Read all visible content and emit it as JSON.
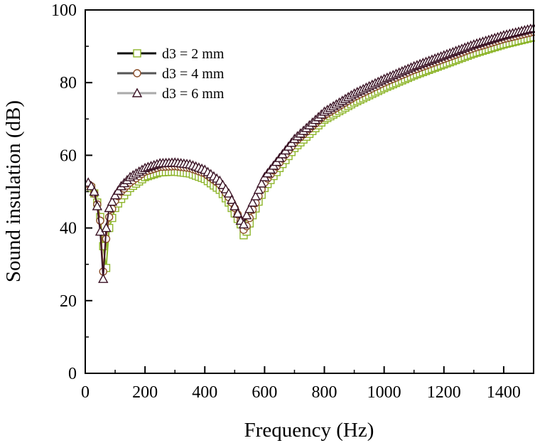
{
  "chart_data": {
    "type": "line",
    "title": "",
    "xlabel": "Frequency (Hz)",
    "ylabel": "Sound insulation (dB)",
    "xlim": [
      0,
      1500
    ],
    "ylim": [
      0,
      100
    ],
    "x_ticks": [
      "0",
      "200",
      "400",
      "600",
      "800",
      "1000",
      "1200",
      "1400"
    ],
    "y_ticks": [
      "0",
      "20",
      "40",
      "60",
      "80",
      "100"
    ],
    "grid": false,
    "legend_position": "top-left",
    "series": [
      {
        "name": "d3 = 2 mm",
        "color": "#8db52a",
        "marker": "square",
        "x": [
          10,
          20,
          30,
          40,
          50,
          60,
          70,
          80,
          100,
          120,
          150,
          200,
          250,
          300,
          350,
          400,
          450,
          480,
          500,
          520,
          530,
          540,
          560,
          600,
          700,
          800,
          900,
          1000,
          1100,
          1200,
          1300,
          1400,
          1500
        ],
        "y": [
          51.5,
          51,
          49.5,
          47,
          43,
          35,
          29,
          40,
          45.5,
          48,
          51,
          54,
          55.3,
          55.5,
          55,
          53.5,
          50.5,
          47,
          44,
          41,
          38,
          39,
          43.5,
          51,
          62,
          69.8,
          74.5,
          78.5,
          82,
          85,
          88,
          90.5,
          92.5
        ]
      },
      {
        "name": "d3 = 4 mm",
        "color": "#8b4f2b",
        "marker": "circle",
        "x": [
          10,
          20,
          30,
          40,
          50,
          60,
          70,
          80,
          100,
          120,
          150,
          200,
          250,
          300,
          350,
          400,
          450,
          480,
          500,
          520,
          530,
          540,
          560,
          600,
          700,
          800,
          900,
          1000,
          1100,
          1200,
          1300,
          1400,
          1500
        ],
        "y": [
          52,
          51.5,
          49.5,
          46.5,
          42,
          28,
          37,
          43,
          47.5,
          50,
          52.5,
          55.5,
          56.8,
          57,
          56.5,
          55,
          52,
          48.5,
          45.5,
          42,
          39.5,
          40.5,
          45,
          52.5,
          63.5,
          71,
          76,
          80,
          83.5,
          86.5,
          89.5,
          92,
          94
        ]
      },
      {
        "name": "d3 = 6 mm",
        "color": "#3a1224",
        "marker": "triangle",
        "x": [
          10,
          20,
          30,
          40,
          50,
          60,
          70,
          80,
          100,
          120,
          150,
          200,
          250,
          300,
          350,
          400,
          450,
          480,
          500,
          520,
          530,
          540,
          560,
          600,
          700,
          800,
          900,
          1000,
          1100,
          1200,
          1300,
          1400,
          1500
        ],
        "y": [
          52.5,
          51.5,
          50,
          46,
          39,
          26,
          40,
          45.5,
          49,
          51.5,
          54,
          56.5,
          57.8,
          58,
          57.5,
          56,
          53,
          49.5,
          46,
          42,
          41,
          43.5,
          47,
          54,
          64.5,
          72,
          77,
          81,
          84.5,
          87.5,
          90.5,
          93,
          95
        ]
      }
    ]
  }
}
